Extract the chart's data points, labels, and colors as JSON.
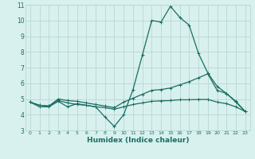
{
  "xlabel": "Humidex (Indice chaleur)",
  "bg_color": "#d8f0ee",
  "grid_color": "#b8d8d4",
  "line_color": "#1a6e62",
  "xlim": [
    -0.5,
    23.5
  ],
  "ylim": [
    3,
    11
  ],
  "xticks": [
    0,
    1,
    2,
    3,
    4,
    5,
    6,
    7,
    8,
    9,
    10,
    11,
    12,
    13,
    14,
    15,
    16,
    17,
    18,
    19,
    20,
    21,
    22,
    23
  ],
  "yticks": [
    3,
    4,
    5,
    6,
    7,
    8,
    9,
    10,
    11
  ],
  "curves": [
    {
      "x": [
        0,
        1,
        2,
        3,
        4,
        5,
        6,
        7,
        8,
        9,
        10,
        11,
        12,
        13,
        14,
        15,
        16,
        17,
        18,
        19,
        20,
        21,
        22,
        23
      ],
      "y": [
        4.8,
        4.5,
        4.5,
        4.85,
        4.5,
        4.7,
        4.6,
        4.5,
        3.85,
        3.25,
        4.0,
        5.6,
        7.8,
        10.0,
        9.9,
        10.9,
        10.2,
        9.7,
        7.9,
        6.65,
        5.8,
        5.35,
        4.8,
        4.2
      ]
    },
    {
      "x": [
        0,
        1,
        2,
        3,
        4,
        5,
        6,
        7,
        8,
        9,
        10,
        11,
        12,
        13,
        14,
        15,
        16,
        17,
        18,
        19,
        20,
        21,
        22,
        23
      ],
      "y": [
        4.8,
        4.6,
        4.55,
        5.0,
        4.9,
        4.85,
        4.75,
        4.65,
        4.55,
        4.45,
        4.8,
        5.05,
        5.3,
        5.55,
        5.6,
        5.7,
        5.9,
        6.1,
        6.35,
        6.6,
        5.55,
        5.35,
        4.85,
        4.2
      ]
    },
    {
      "x": [
        0,
        1,
        2,
        3,
        4,
        5,
        6,
        7,
        8,
        9,
        10,
        11,
        12,
        13,
        14,
        15,
        16,
        17,
        18,
        19,
        20,
        21,
        22,
        23
      ],
      "y": [
        4.8,
        4.6,
        4.55,
        4.9,
        4.75,
        4.65,
        4.6,
        4.5,
        4.45,
        4.35,
        4.5,
        4.65,
        4.75,
        4.85,
        4.88,
        4.9,
        4.95,
        4.95,
        4.97,
        4.97,
        4.8,
        4.7,
        4.5,
        4.2
      ]
    }
  ]
}
